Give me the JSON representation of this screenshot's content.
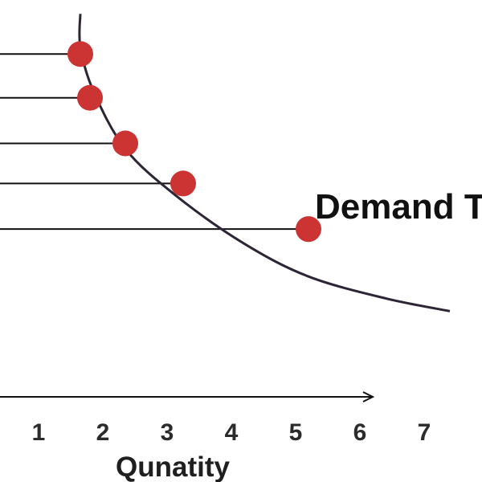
{
  "chart_data": {
    "type": "line",
    "title": "Demand T",
    "xlabel": "Qunatity",
    "ylabel": "",
    "x_ticks": [
      "1",
      "2",
      "3",
      "4",
      "5",
      "6",
      "7"
    ],
    "xlim": [
      0.4,
      7.9
    ],
    "ylim": [
      0,
      10
    ],
    "grid": false,
    "legend": "none",
    "series": [
      {
        "curve": [
          {
            "x": 1.65,
            "y": 10.5
          },
          {
            "x": 1.65,
            "y": 9.6
          },
          {
            "x": 1.85,
            "y": 8.4
          },
          {
            "x": 2.35,
            "y": 6.8
          },
          {
            "x": 3.15,
            "y": 5.5
          },
          {
            "x": 4.2,
            "y": 4.2
          },
          {
            "x": 5.2,
            "y": 3.3
          },
          {
            "x": 6.4,
            "y": 2.7
          },
          {
            "x": 7.4,
            "y": 2.35
          }
        ],
        "points": [
          {
            "x": 1.65,
            "y": 9.4
          },
          {
            "x": 1.8,
            "y": 8.2
          },
          {
            "x": 2.35,
            "y": 6.95
          },
          {
            "x": 3.25,
            "y": 5.85
          },
          {
            "x": 5.2,
            "y": 4.6
          }
        ]
      }
    ],
    "colors": {
      "curve": "#2d2535",
      "point": "#cc3333",
      "axis": "#111111",
      "guide": "#111111"
    }
  }
}
